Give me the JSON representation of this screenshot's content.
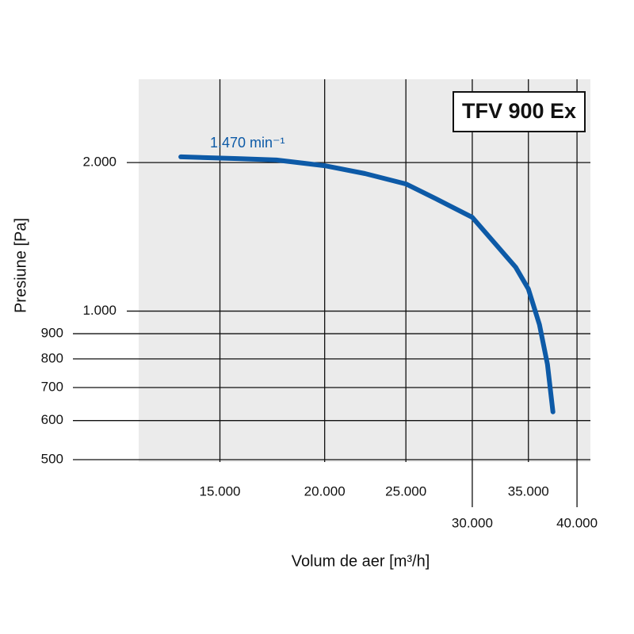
{
  "chart_data": {
    "type": "line",
    "model": "TFV 900 Ex",
    "annotation": "1.470 min⁻¹",
    "xlabel": "Volum de aer [m³/h]",
    "ylabel": "Presiune [Pa]",
    "xscale": "log",
    "yscale": "log",
    "grid": true,
    "xlim": [
      12000,
      41500
    ],
    "ylim": [
      500,
      2950
    ],
    "xticks": [
      {
        "value": 15000,
        "label": "15.000"
      },
      {
        "value": 20000,
        "label": "20.000"
      },
      {
        "value": 25000,
        "label": "25.000"
      },
      {
        "value": 30000,
        "label": "30.000"
      },
      {
        "value": 35000,
        "label": "35.000"
      },
      {
        "value": 40000,
        "label": "40.000"
      }
    ],
    "yticks": [
      {
        "value": 2000,
        "label": "2.000"
      },
      {
        "value": 1000,
        "label": "1.000"
      },
      900,
      800,
      700,
      600,
      500
    ],
    "x": [
      13470,
      15750,
      17520,
      20000,
      22340,
      25000,
      27180,
      30000,
      32360,
      33800,
      35000,
      36080,
      36880,
      37440
    ],
    "series": [
      {
        "color": "#0d5aa7",
        "values": [
          2054,
          2037,
          2024,
          1971,
          1900,
          1810,
          1687,
          1549,
          1336,
          1227,
          1109,
          939,
          780,
          625
        ]
      }
    ]
  }
}
